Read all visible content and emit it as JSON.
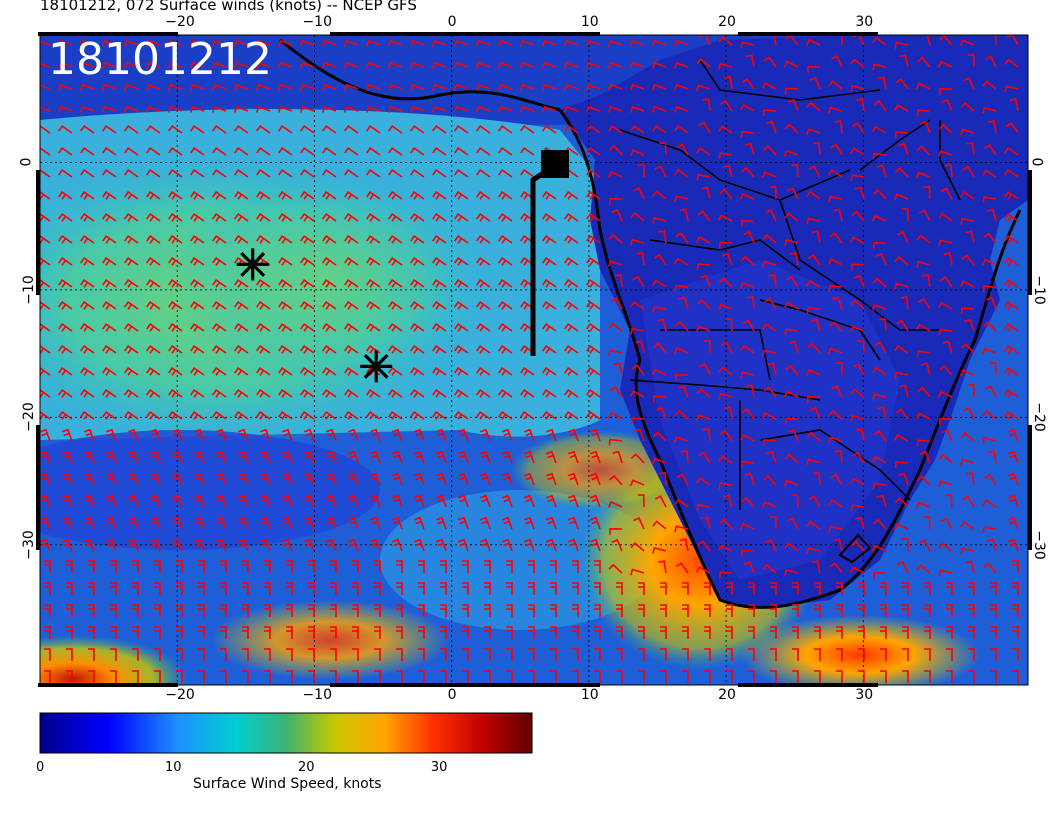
{
  "title": "18101212, 072 Surface winds (knots) -- NCEP GFS",
  "stamp": "18101212",
  "map": {
    "lon_range": [
      -30,
      42
    ],
    "lat_range": [
      -41,
      10
    ],
    "x_ticks": [
      "−20",
      "−10",
      "0",
      "10",
      "20",
      "30"
    ],
    "y_ticks": [
      "0",
      "−10",
      "−20",
      "−30"
    ],
    "x_tick_values": [
      -20,
      -10,
      0,
      10,
      20,
      30
    ],
    "y_tick_values": [
      0,
      -10,
      -20,
      -30
    ],
    "gridlines": "dotted",
    "markers": [
      {
        "type": "asterisk",
        "lon": -14.5,
        "lat": -8
      },
      {
        "type": "asterisk",
        "lon": -5.5,
        "lat": -16
      }
    ],
    "track": {
      "type": "square-flag",
      "lon": 6.5,
      "lat": 0.5
    }
  },
  "colorbar": {
    "title": "Surface Wind Speed, knots",
    "ticks": [
      "0",
      "10",
      "20",
      "30"
    ],
    "tick_values": [
      0,
      10,
      20,
      30
    ],
    "range": [
      0,
      37
    ],
    "colors": [
      "#00008b",
      "#0000ff",
      "#00bfff",
      "#40e0d0",
      "#3cb371",
      "#c8c800",
      "#ffa500",
      "#ff3000",
      "#b00000",
      "#600000"
    ]
  },
  "barb_color": "#ff0000"
}
